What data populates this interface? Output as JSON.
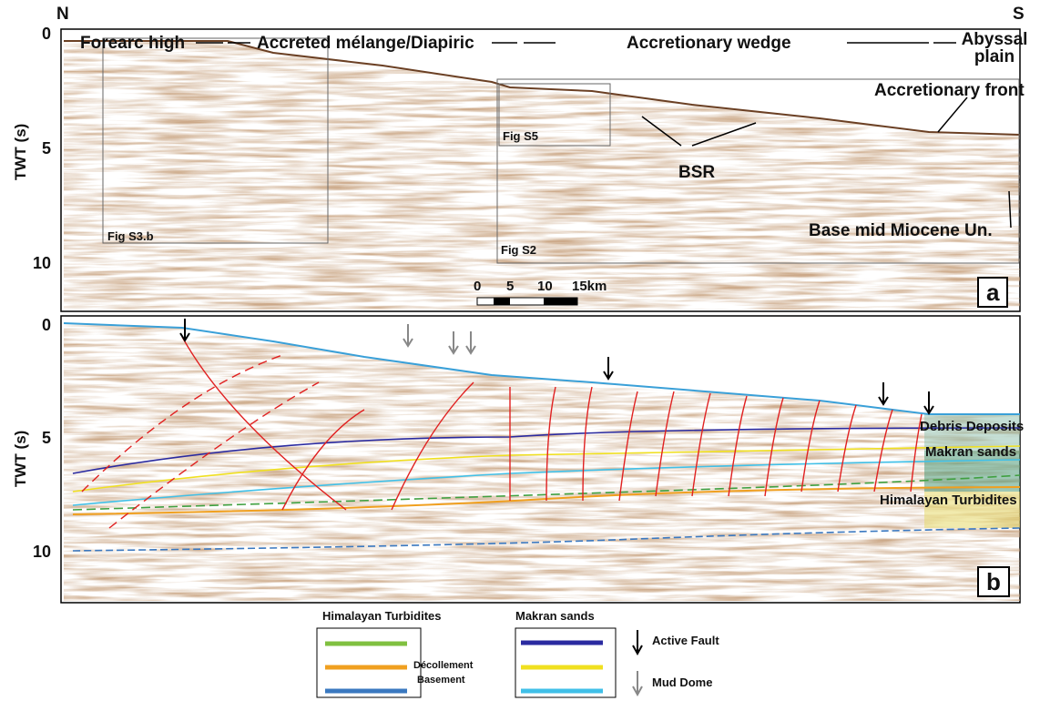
{
  "header": {
    "north": "N",
    "south": "S"
  },
  "panel_a": {
    "label": "a",
    "axis_title": "TWT (s)",
    "ticks": [
      "0",
      "5",
      "10"
    ],
    "zones": [
      "Forearc high",
      "Accreted mélange/Diapiric",
      "Accretionary wedge",
      "Abyssal plain"
    ],
    "annotations": [
      "Accretionary front",
      "BSR",
      "Base mid Miocene Un."
    ],
    "boxes": [
      "Fig S3.b",
      "Fig S5",
      "Fig S2"
    ],
    "scale_bar": [
      "0",
      "5",
      "10",
      "15km"
    ]
  },
  "panel_b": {
    "label": "b",
    "axis_title": "TWT (s)",
    "ticks": [
      "0",
      "5",
      "10"
    ],
    "units": [
      "Debris Deposits",
      "Makran sands",
      "Himalayan Turbidites"
    ]
  },
  "legend": {
    "groups": [
      {
        "title": "Himalayan Turbidites",
        "items": [
          "Décollement",
          "Basement"
        ]
      },
      {
        "title": "Makran sands"
      }
    ],
    "symbols": [
      "Active Fault",
      "Mud Dome"
    ]
  }
}
